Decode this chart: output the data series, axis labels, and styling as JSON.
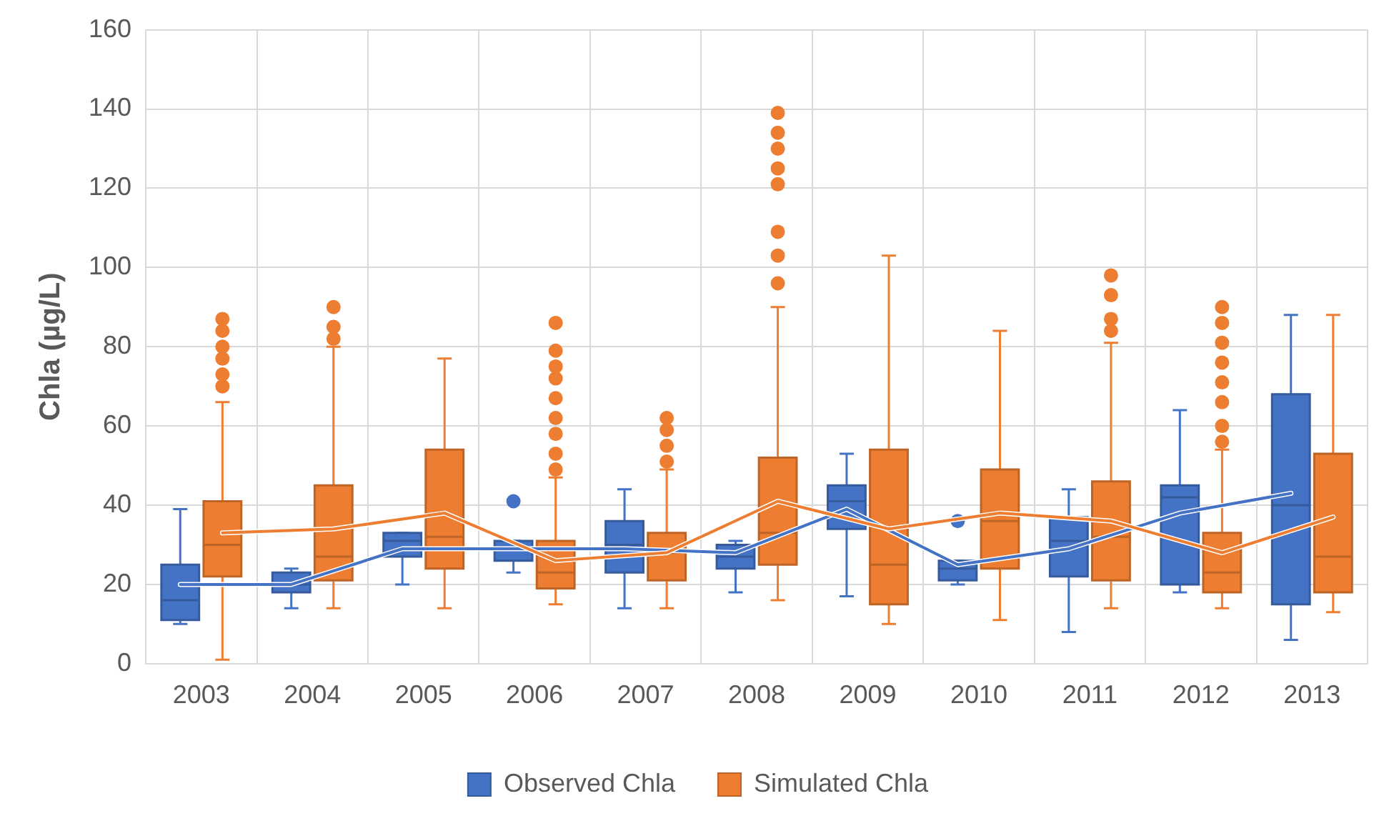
{
  "chart_data": {
    "type": "box",
    "ylabel": "Chla (µg/L)",
    "categories": [
      "2003",
      "2004",
      "2005",
      "2006",
      "2007",
      "2008",
      "2009",
      "2010",
      "2011",
      "2012",
      "2013"
    ],
    "ylim": [
      0,
      160
    ],
    "yticks": [
      0,
      20,
      40,
      60,
      80,
      100,
      120,
      140,
      160
    ],
    "grid": true,
    "legend": "bottom",
    "series": [
      {
        "name": "Observed Chla",
        "color": "#4472c4",
        "boxes": [
          {
            "low": 10,
            "q1": 11,
            "median": 16,
            "q3": 25,
            "high": 39
          },
          {
            "low": 14,
            "q1": 18,
            "median": 20,
            "q3": 23,
            "high": 24
          },
          {
            "low": 20,
            "q1": 27,
            "median": 31,
            "q3": 33,
            "high": 33
          },
          {
            "low": 23,
            "q1": 26,
            "median": 29,
            "q3": 31,
            "high": 31,
            "outliers": [
              41
            ]
          },
          {
            "low": 14,
            "q1": 23,
            "median": 30,
            "q3": 36,
            "high": 44
          },
          {
            "low": 18,
            "q1": 24,
            "median": 27,
            "q3": 30,
            "high": 31
          },
          {
            "low": 17,
            "q1": 34,
            "median": 41,
            "q3": 45,
            "high": 53
          },
          {
            "low": 20,
            "q1": 21,
            "median": 24,
            "q3": 26,
            "high": 26,
            "outliers": [
              36
            ]
          },
          {
            "low": 8,
            "q1": 22,
            "median": 31,
            "q3": 37,
            "high": 44
          },
          {
            "low": 18,
            "q1": 20,
            "median": 42,
            "q3": 45,
            "high": 64
          },
          {
            "low": 6,
            "q1": 15,
            "median": 40,
            "q3": 68,
            "high": 88
          }
        ]
      },
      {
        "name": "Simulated Chla",
        "color": "#ed7d31",
        "boxes": [
          {
            "low": 1,
            "q1": 22,
            "median": 30,
            "q3": 41,
            "high": 66,
            "outliers": [
              70,
              73,
              77,
              80,
              84,
              87
            ]
          },
          {
            "low": 14,
            "q1": 21,
            "median": 27,
            "q3": 45,
            "high": 80,
            "outliers": [
              82,
              85,
              90
            ]
          },
          {
            "low": 14,
            "q1": 24,
            "median": 32,
            "q3": 54,
            "high": 77
          },
          {
            "low": 15,
            "q1": 19,
            "median": 23,
            "q3": 31,
            "high": 47,
            "outliers": [
              49,
              53,
              58,
              62,
              67,
              72,
              75,
              79,
              86
            ]
          },
          {
            "low": 14,
            "q1": 21,
            "median": 28,
            "q3": 33,
            "high": 49,
            "outliers": [
              51,
              55,
              59,
              62
            ]
          },
          {
            "low": 16,
            "q1": 25,
            "median": 33,
            "q3": 52,
            "high": 90,
            "outliers": [
              96,
              103,
              109,
              121,
              125,
              130,
              134,
              139
            ]
          },
          {
            "low": 10,
            "q1": 15,
            "median": 25,
            "q3": 54,
            "high": 103
          },
          {
            "low": 11,
            "q1": 24,
            "median": 36,
            "q3": 49,
            "high": 84
          },
          {
            "low": 14,
            "q1": 21,
            "median": 32,
            "q3": 46,
            "high": 81,
            "outliers": [
              84,
              87,
              93,
              98
            ]
          },
          {
            "low": 14,
            "q1": 18,
            "median": 23,
            "q3": 33,
            "high": 54,
            "outliers": [
              56,
              60,
              66,
              71,
              76,
              81,
              86,
              90
            ]
          },
          {
            "low": 13,
            "q1": 18,
            "median": 27,
            "q3": 53,
            "high": 88
          }
        ]
      },
      {
        "type": "line",
        "color": "#4472c4",
        "values": [
          20,
          20,
          29,
          29,
          29,
          28,
          39,
          25,
          29,
          38,
          43
        ]
      },
      {
        "type": "line",
        "color": "#ed7d31",
        "values": [
          33,
          34,
          38,
          26,
          28,
          41,
          34,
          38,
          36,
          28,
          37
        ]
      }
    ]
  }
}
